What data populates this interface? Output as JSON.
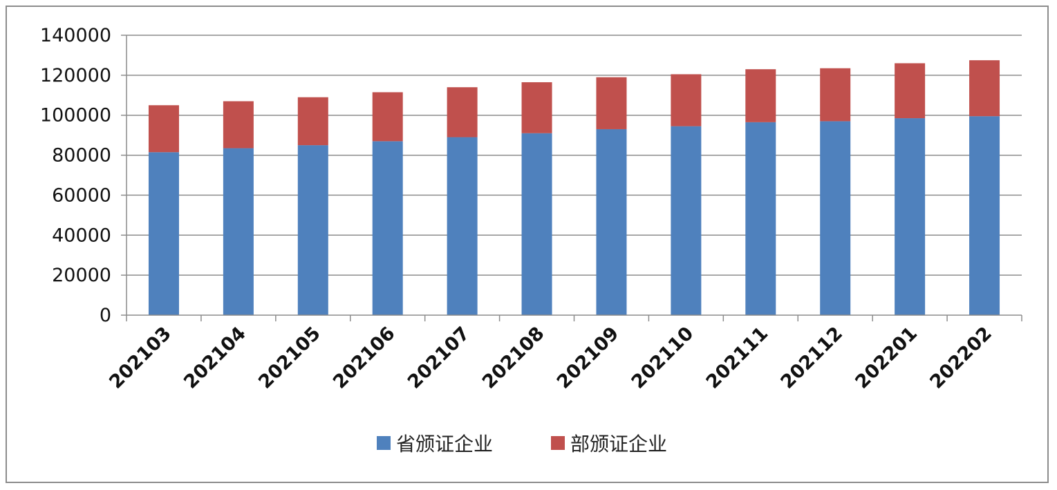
{
  "chart_data": {
    "type": "bar",
    "stacked": true,
    "title": "",
    "xlabel": "",
    "ylabel": "",
    "ylim": [
      0,
      140000
    ],
    "yticks": [
      0,
      20000,
      40000,
      60000,
      80000,
      100000,
      120000,
      140000
    ],
    "grid": true,
    "legend_position": "bottom",
    "categories": [
      "202103",
      "202104",
      "202105",
      "202106",
      "202107",
      "202108",
      "202109",
      "202110",
      "202111",
      "202112",
      "202201",
      "202202"
    ],
    "series": [
      {
        "name": "省颁证企业",
        "color": "#4f81bd",
        "values": [
          81500,
          83500,
          85000,
          87000,
          89000,
          91000,
          93000,
          94500,
          96500,
          97000,
          98500,
          99500
        ]
      },
      {
        "name": "部颁证企业",
        "color": "#c0504d",
        "values": [
          23500,
          23500,
          24000,
          24500,
          25000,
          25500,
          26000,
          26000,
          26500,
          26500,
          27500,
          28000
        ]
      }
    ]
  }
}
